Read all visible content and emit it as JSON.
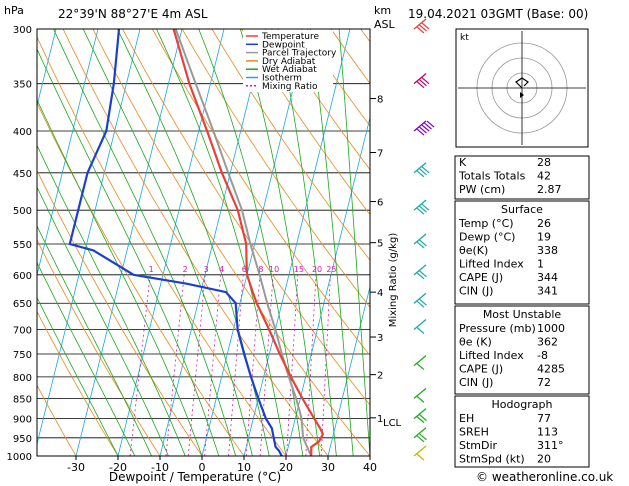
{
  "header": {
    "location": "22°39'N  88°27'E  4m  ASL",
    "datetime": "19.04.2021  03GMT  (Base: 00)",
    "p_unit": "hPa",
    "km_unit": "km",
    "asl_unit": "ASL"
  },
  "axes": {
    "xlabel": "Dewpoint / Temperature (°C)",
    "mixing_label": "Mixing Ratio (g/kg)",
    "lcl_label": "LCL"
  },
  "legend": [
    "Temperature",
    "Dewpoint",
    "Parcel Trajectory",
    "Dry Adiabat",
    "Wet Adiabat",
    "Isotherm",
    "Mixing Ratio"
  ],
  "colors": {
    "temperature": "#e8403a",
    "dewpoint": "#1d3fcf",
    "parcel": "#999999",
    "dry_adiabat": "#e8891e",
    "wet_adiabat": "#1ca81c",
    "isotherm": "#19a8d8",
    "mixing_ratio": "#d01bb0"
  },
  "hodograph": {
    "unit_label": "kt"
  },
  "copyright": "© weatheronline.co.uk",
  "table": {
    "top": [
      {
        "label": "K",
        "value": "28"
      },
      {
        "label": "Totals Totals",
        "value": "42"
      },
      {
        "label": "PW (cm)",
        "value": "2.87"
      }
    ],
    "surface": {
      "title": "Surface",
      "rows": [
        {
          "label": "Temp (°C)",
          "value": "26"
        },
        {
          "label": "Dewp (°C)",
          "value": "19"
        },
        {
          "label": "θe(K)",
          "value": "338"
        },
        {
          "label": "Lifted Index",
          "value": "1"
        },
        {
          "label": "CAPE (J)",
          "value": "344"
        },
        {
          "label": "CIN (J)",
          "value": "341"
        }
      ]
    },
    "most_unstable": {
      "title": "Most Unstable",
      "rows": [
        {
          "label": "Pressure (mb)",
          "value": "1000"
        },
        {
          "label": "θe (K)",
          "value": "362"
        },
        {
          "label": "Lifted Index",
          "value": "-8"
        },
        {
          "label": "CAPE (J)",
          "value": "4285"
        },
        {
          "label": "CIN (J)",
          "value": "72"
        }
      ]
    },
    "hodograph": {
      "title": "Hodograph",
      "rows": [
        {
          "label": "EH",
          "value": "77"
        },
        {
          "label": "SREH",
          "value": "113"
        },
        {
          "label": "StmDir",
          "value": "311°"
        },
        {
          "label": "StmSpd (kt)",
          "value": "20"
        }
      ]
    }
  },
  "chart_data": {
    "type": "line",
    "title": "",
    "xlabel": "Dewpoint / Temperature (°C)",
    "ylabel": "hPa",
    "xlim": [
      -35,
      40
    ],
    "ylim": [
      1000,
      300
    ],
    "x_ticks": [
      -30,
      -20,
      -10,
      0,
      10,
      20,
      30,
      40
    ],
    "pressure_levels": [
      300,
      350,
      400,
      450,
      500,
      550,
      600,
      650,
      700,
      750,
      800,
      850,
      900,
      950,
      1000
    ],
    "km_ticks": [
      {
        "km": 1,
        "p": 898
      },
      {
        "km": 2,
        "p": 795
      },
      {
        "km": 3,
        "p": 715
      },
      {
        "km": 4,
        "p": 630
      },
      {
        "km": 5,
        "p": 548
      },
      {
        "km": 6,
        "p": 488
      },
      {
        "km": 7,
        "p": 425
      },
      {
        "km": 8,
        "p": 365
      }
    ],
    "mixing_ratio_labels": [
      "1",
      "2",
      "3",
      "4",
      "6",
      "8",
      "10",
      "15",
      "20",
      "25"
    ],
    "series": [
      {
        "name": "Temperature",
        "points": [
          [
            1000,
            26
          ],
          [
            975,
            25.5
          ],
          [
            960,
            27
          ],
          [
            940,
            27.5
          ],
          [
            925,
            26.5
          ],
          [
            900,
            24.5
          ],
          [
            850,
            20.5
          ],
          [
            800,
            16.5
          ],
          [
            750,
            12.5
          ],
          [
            700,
            8.5
          ],
          [
            650,
            4
          ],
          [
            625,
            2
          ],
          [
            600,
            0
          ],
          [
            575,
            -1
          ],
          [
            550,
            -2
          ],
          [
            500,
            -6
          ],
          [
            450,
            -12
          ],
          [
            400,
            -18
          ],
          [
            350,
            -25
          ],
          [
            300,
            -32
          ]
        ]
      },
      {
        "name": "Dewpoint",
        "points": [
          [
            1000,
            19
          ],
          [
            985,
            18
          ],
          [
            975,
            17
          ],
          [
            950,
            16
          ],
          [
            925,
            15
          ],
          [
            900,
            13
          ],
          [
            850,
            10
          ],
          [
            800,
            7
          ],
          [
            750,
            4
          ],
          [
            700,
            1
          ],
          [
            650,
            -1
          ],
          [
            630,
            -4
          ],
          [
            615,
            -14
          ],
          [
            600,
            -27
          ],
          [
            560,
            -38
          ],
          [
            550,
            -44
          ],
          [
            500,
            -44
          ],
          [
            450,
            -44
          ],
          [
            400,
            -42
          ],
          [
            350,
            -43
          ],
          [
            300,
            -45
          ]
        ]
      },
      {
        "name": "Parcel Trajectory",
        "points": [
          [
            1000,
            26
          ],
          [
            950,
            23
          ],
          [
            900,
            21.5
          ],
          [
            850,
            19
          ],
          [
            800,
            16
          ],
          [
            750,
            13
          ],
          [
            700,
            10
          ],
          [
            650,
            6.5
          ],
          [
            600,
            3
          ],
          [
            550,
            -1
          ],
          [
            500,
            -5
          ],
          [
            450,
            -10.5
          ],
          [
            400,
            -16.5
          ],
          [
            350,
            -23.5
          ],
          [
            300,
            -31.5
          ]
        ]
      }
    ],
    "wind_barbs": [
      {
        "p": 300,
        "speed_kt": 30,
        "color": "#e8403a"
      },
      {
        "p": 350,
        "speed_kt": 25,
        "color": "#c0006a"
      },
      {
        "p": 400,
        "speed_kt": 50,
        "color": "#7a00c8"
      },
      {
        "p": 450,
        "speed_kt": 25,
        "color": "#19a8a8"
      },
      {
        "p": 500,
        "speed_kt": 30,
        "color": "#19a8a8"
      },
      {
        "p": 550,
        "speed_kt": 20,
        "color": "#19a8a8"
      },
      {
        "p": 600,
        "speed_kt": 20,
        "color": "#19a8a8"
      },
      {
        "p": 650,
        "speed_kt": 15,
        "color": "#19a8a8"
      },
      {
        "p": 700,
        "speed_kt": 10,
        "color": "#19a8a8"
      },
      {
        "p": 775,
        "speed_kt": 10,
        "color": "#22aa22"
      },
      {
        "p": 850,
        "speed_kt": 10,
        "color": "#22aa22"
      },
      {
        "p": 900,
        "speed_kt": 15,
        "color": "#22aa22"
      },
      {
        "p": 950,
        "speed_kt": 15,
        "color": "#22aa22"
      },
      {
        "p": 1000,
        "speed_kt": 10,
        "color": "#c8b400"
      }
    ]
  }
}
